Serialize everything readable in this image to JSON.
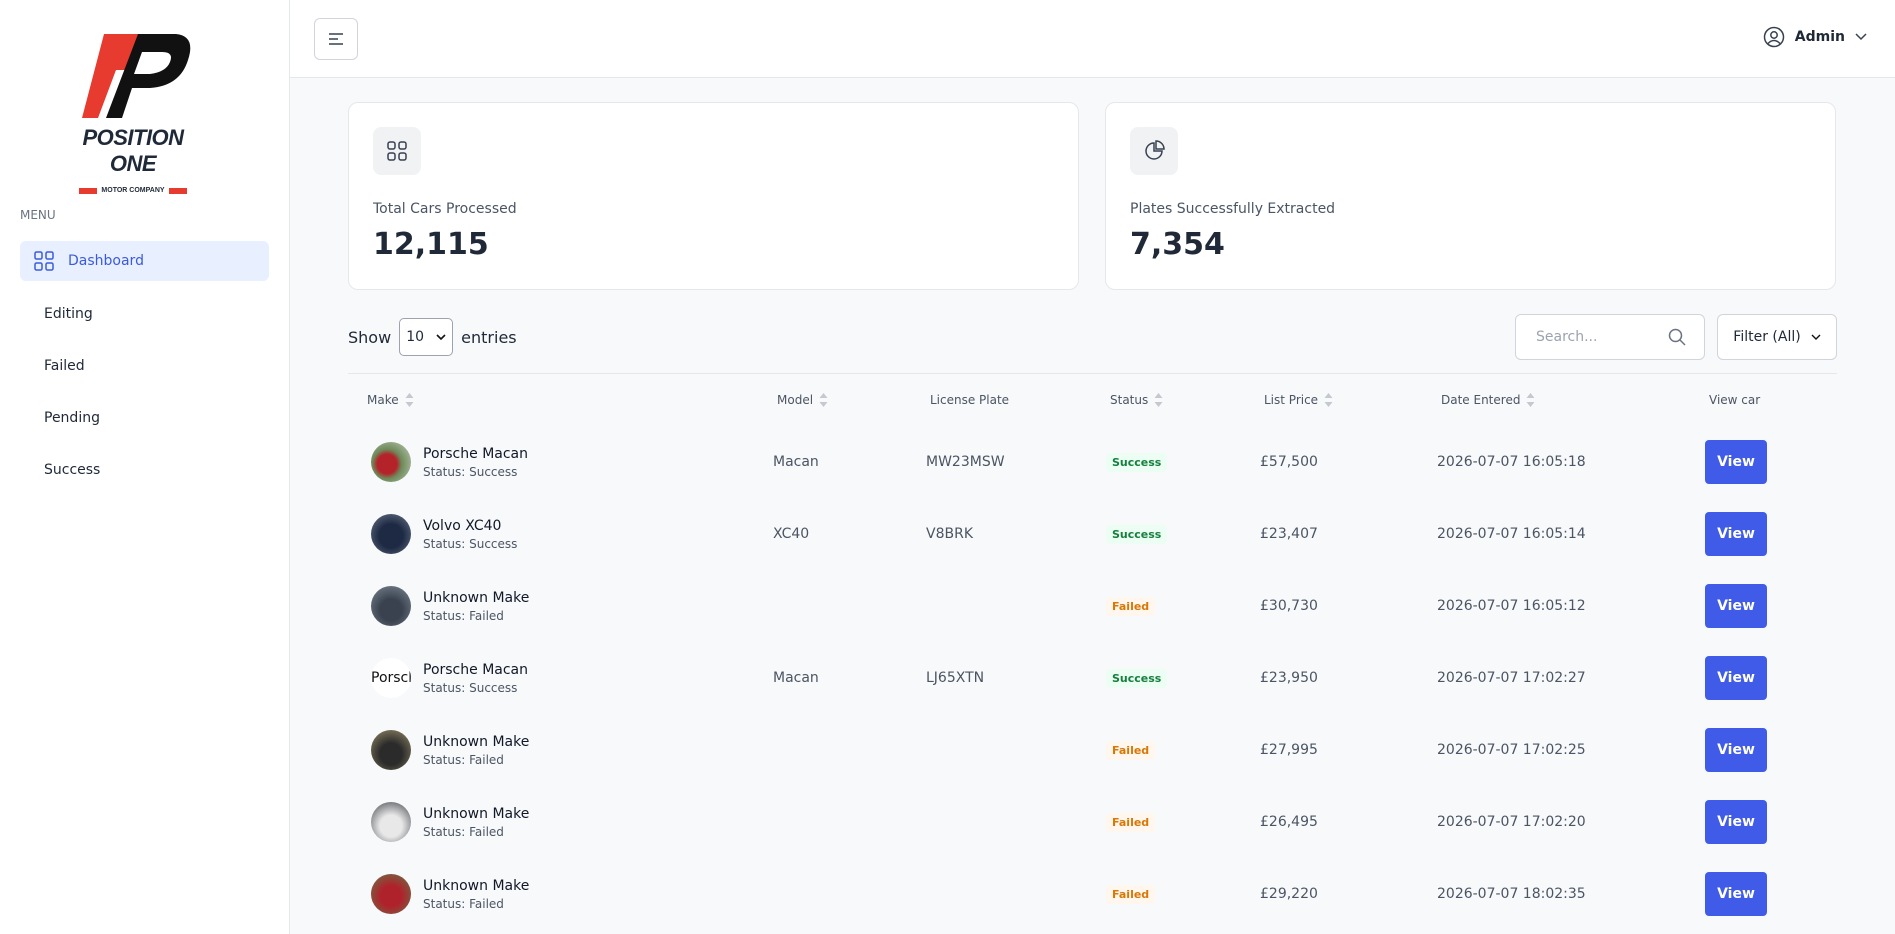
{
  "logo": {
    "name": "POSITION ONE",
    "sub": "MOTOR COMPANY"
  },
  "sidebar": {
    "menu_label": "MENU",
    "items": [
      "Dashboard",
      "Editing",
      "Failed",
      "Pending",
      "Success"
    ]
  },
  "header": {
    "user": "Admin"
  },
  "stats": [
    {
      "label": "Total Cars Processed",
      "value": "12,115"
    },
    {
      "label": "Plates Successfully Extracted",
      "value": "7,354"
    }
  ],
  "controls": {
    "show": "Show",
    "entries_option": "10",
    "entries": "entries",
    "search_placeholder": "Search...",
    "filter": "Filter (All)"
  },
  "table": {
    "columns": [
      "Make",
      "Model",
      "License Plate",
      "Status",
      "List Price",
      "Date Entered",
      "View car"
    ],
    "rows": [
      {
        "make": "Porsche Macan",
        "status_line": "Status: Success",
        "model": "Macan",
        "plate": "MW23MSW",
        "status": "Success",
        "price": "£57,500",
        "date": "2026-07-07 16:05:18",
        "action": "View"
      },
      {
        "make": "Volvo XC40",
        "status_line": "Status: Success",
        "model": "XC40",
        "plate": "V8BRK",
        "status": "Success",
        "price": "£23,407",
        "date": "2026-07-07 16:05:14",
        "action": "View"
      },
      {
        "make": "Unknown Make",
        "status_line": "Status: Failed",
        "model": null,
        "plate": null,
        "status": "Failed",
        "price": "£30,730",
        "date": "2026-07-07 16:05:12",
        "action": "View"
      },
      {
        "make": "Porsche Macan",
        "status_line": "Status: Success",
        "model": "Macan",
        "plate": "LJ65XTN",
        "status": "Success",
        "price": "£23,950",
        "date": "2026-07-07 17:02:27",
        "action": "View"
      },
      {
        "make": "Unknown Make",
        "status_line": "Status: Failed",
        "model": null,
        "plate": null,
        "status": "Failed",
        "price": "£27,995",
        "date": "2026-07-07 17:02:25",
        "action": "View"
      },
      {
        "make": "Unknown Make",
        "status_line": "Status: Failed",
        "model": null,
        "plate": null,
        "status": "Failed",
        "price": "£26,495",
        "date": "2026-07-07 17:02:20",
        "action": "View"
      },
      {
        "make": "Unknown Make",
        "status_line": "Status: Failed",
        "model": null,
        "plate": null,
        "status": "Failed",
        "price": "£29,220",
        "date": "2026-07-07 18:02:35",
        "action": "View"
      }
    ]
  }
}
